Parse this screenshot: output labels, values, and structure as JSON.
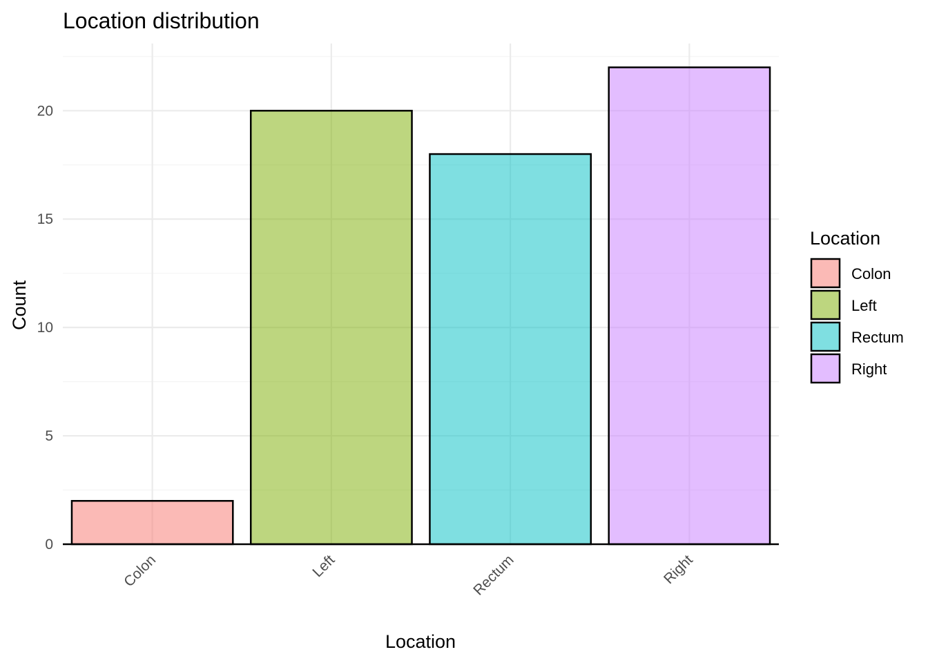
{
  "chart_data": {
    "type": "bar",
    "title": "Location distribution",
    "xlabel": "Location",
    "ylabel": "Count",
    "categories": [
      "Colon",
      "Left",
      "Rectum",
      "Right"
    ],
    "values": [
      2,
      20,
      18,
      22
    ],
    "colors": [
      "#F8766D",
      "#7CAE00",
      "#00BFC4",
      "#C77CFF"
    ],
    "ylim": [
      0,
      23.1
    ],
    "yticks": [
      0,
      5,
      10,
      15,
      20
    ],
    "grid": true,
    "legend": {
      "title": "Location",
      "position": "right",
      "entries": [
        "Colon",
        "Left",
        "Rectum",
        "Right"
      ]
    }
  }
}
